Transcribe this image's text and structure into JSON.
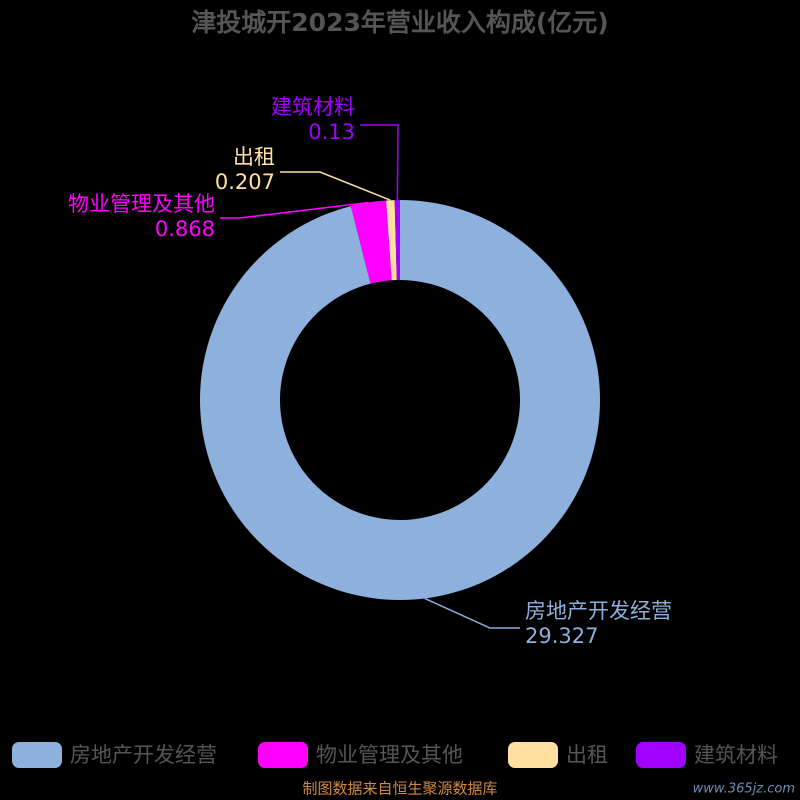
{
  "chart_data": {
    "type": "donut",
    "title": "津投城开2023年营业收入构成(亿元)",
    "categories": [
      "房地产开发经营",
      "物业管理及其他",
      "出租",
      "建筑材料"
    ],
    "values": [
      29.327,
      0.868,
      0.207,
      0.13
    ],
    "colors": [
      "#8eb0dc",
      "#ff00ff",
      "#ffe0a0",
      "#a000ff"
    ],
    "legend": "bottom",
    "source": "制图数据来自恒生聚源数据库",
    "watermark": "www.365jz.com"
  }
}
